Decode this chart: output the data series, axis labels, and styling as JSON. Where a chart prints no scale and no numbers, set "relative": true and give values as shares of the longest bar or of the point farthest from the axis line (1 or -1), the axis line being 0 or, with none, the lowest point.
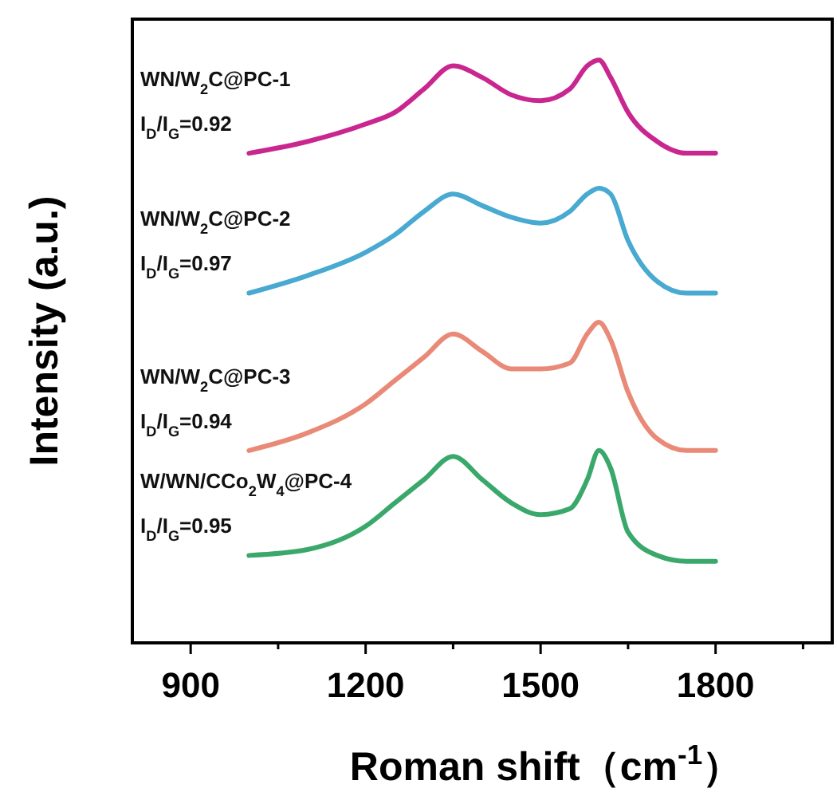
{
  "chart_data": {
    "type": "line",
    "relative": true,
    "xlabel": "Roman shift（cm$^{-1}$）",
    "ylabel": "Intensity (a.u.)",
    "x": [
      1000,
      1100,
      1200,
      1250,
      1300,
      1350,
      1400,
      1450,
      1500,
      1550,
      1580,
      1600,
      1620,
      1650,
      1700,
      1750,
      1800
    ],
    "xlim": [
      800,
      2000
    ],
    "xticks": [
      900,
      {
        "value": 1050,
        "label": null
      },
      1200,
      {
        "value": 1350,
        "label": null
      },
      1500,
      {
        "value": 1650,
        "label": null
      },
      1800,
      {
        "value": 1950,
        "label": null
      }
    ],
    "tick_labels": "x",
    "line_style": "solid",
    "series": [
      {
        "name": "WN/W$_{2}$C@PC-1",
        "color": "#c9268f",
        "values": [
          0.84,
          0.86,
          0.89,
          0.91,
          0.95,
          0.99,
          0.97,
          0.94,
          0.93,
          0.95,
          0.99,
          1,
          0.97,
          0.91,
          0.86,
          0.84,
          0.84
        ]
      },
      {
        "name": "WN/W$_{2}$C@PC-2",
        "color": "#48a9d1",
        "values": [
          0.6,
          0.63,
          0.67,
          0.7,
          0.74,
          0.77,
          0.75,
          0.73,
          0.72,
          0.74,
          0.77,
          0.78,
          0.77,
          0.69,
          0.62,
          0.6,
          0.6
        ]
      },
      {
        "name": "WN/W$_{2}$C@PC-3",
        "color": "#e98a78",
        "values": [
          0.33,
          0.36,
          0.41,
          0.45,
          0.49,
          0.53,
          0.5,
          0.47,
          0.47,
          0.48,
          0.53,
          0.55,
          0.52,
          0.43,
          0.35,
          0.33,
          0.33
        ]
      },
      {
        "name": "W/WN/CCo$_{2}$W$_{4}$@PC-4",
        "color": "#3aa86b",
        "values": [
          0.15,
          0.16,
          0.2,
          0.24,
          0.28,
          0.32,
          0.28,
          0.24,
          0.22,
          0.23,
          0.28,
          0.33,
          0.3,
          0.19,
          0.15,
          0.14,
          0.14
        ]
      }
    ],
    "annotations": [
      "I$_{D}$/I$_{G}$=0.92",
      "I$_{D}$/I$_{G}$=0.97",
      "I$_{D}$/I$_{G}$=0.94",
      "I$_{D}$/I$_{G}$=0.95"
    ]
  }
}
